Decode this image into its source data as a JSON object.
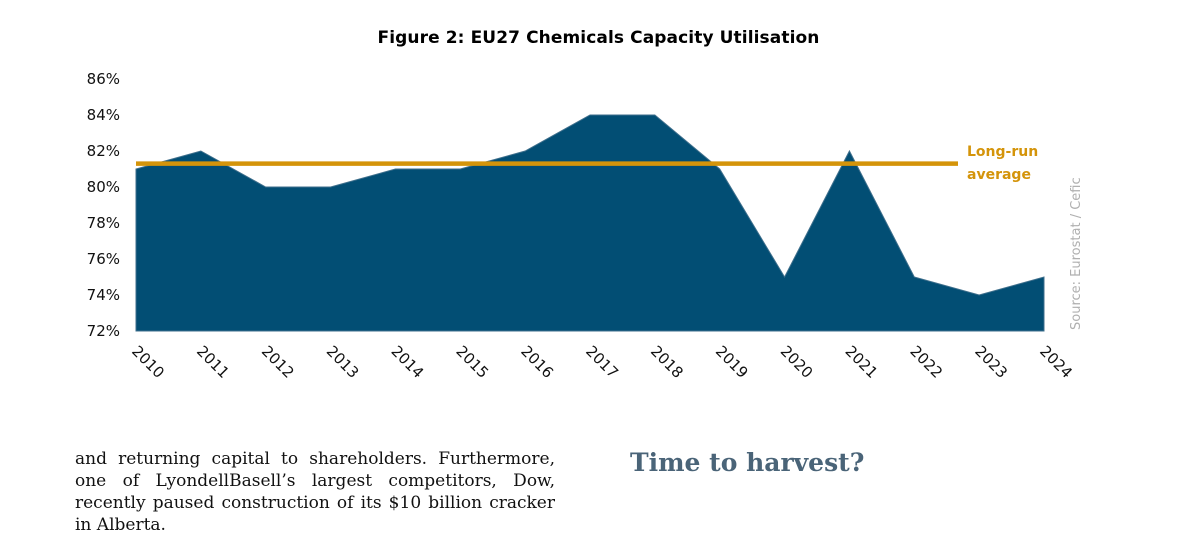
{
  "chart_data": {
    "type": "area",
    "title": "Figure 2: EU27 Chemicals Capacity Utilisation",
    "x": [
      "2010",
      "2011",
      "2012",
      "2013",
      "2014",
      "2015",
      "2016",
      "2017",
      "2018",
      "2019",
      "2020",
      "2021",
      "2022",
      "2023",
      "2024"
    ],
    "series": [
      {
        "values": [
          81,
          82,
          80,
          80,
          81,
          81,
          82,
          84,
          84,
          81,
          75,
          82,
          75,
          74,
          75
        ],
        "color": "#024e74"
      }
    ],
    "reference_line": {
      "label": "Long-run average",
      "value": 81.3,
      "color": "#d4940a"
    },
    "ylim": [
      72,
      86
    ],
    "yticks": [
      "72%",
      "74%",
      "76%",
      "78%",
      "80%",
      "82%",
      "84%",
      "86%"
    ],
    "ytick_values": [
      72,
      74,
      76,
      78,
      80,
      82,
      84,
      86
    ],
    "source": "Source: Eurostat / Cefic",
    "grid": false
  },
  "text": {
    "body": "and returning capital to shareholders. Furthermore, one of LyondellBasell’s largest competitors, Dow, recently paused construction of its $10 billion cracker in Alberta.",
    "heading": "Time to harvest?"
  }
}
